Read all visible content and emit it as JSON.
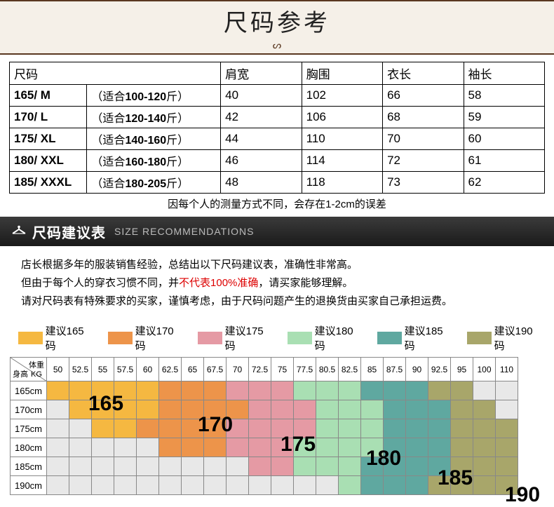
{
  "banner": {
    "title": "尺码参考",
    "sub": "ᔕ"
  },
  "sizeTable": {
    "headers": [
      "尺码",
      "肩宽",
      "胸围",
      "衣长",
      "袖长"
    ],
    "rows": [
      {
        "size": "165/ M",
        "fit_pre": "（适合",
        "fit_b": "100-120",
        "fit_suf": "斤）",
        "shoulder": "40",
        "chest": "102",
        "length": "66",
        "sleeve": "58"
      },
      {
        "size": "170/ L",
        "fit_pre": "（适合",
        "fit_b": "120-140",
        "fit_suf": "斤）",
        "shoulder": "42",
        "chest": "106",
        "length": "68",
        "sleeve": "59"
      },
      {
        "size": "175/ XL",
        "fit_pre": "（适合",
        "fit_b": "140-160",
        "fit_suf": "斤）",
        "shoulder": "44",
        "chest": "110",
        "length": "70",
        "sleeve": "60"
      },
      {
        "size": "180/ XXL",
        "fit_pre": "（适合",
        "fit_b": "160-180",
        "fit_suf": "斤）",
        "shoulder": "46",
        "chest": "114",
        "length": "72",
        "sleeve": "61"
      },
      {
        "size": "185/ XXXL",
        "fit_pre": "（适合",
        "fit_b": "180-205",
        "fit_suf": "斤）",
        "shoulder": "48",
        "chest": "118",
        "length": "73",
        "sleeve": "62"
      }
    ]
  },
  "note": "因每个人的测量方式不同，会存在1-2cm的误差",
  "recHead": {
    "zh": "尺码建议表",
    "en": "SIZE RECOMMENDATIONS"
  },
  "recText": {
    "l1": "店长根据多年的服装销售经验，总结出以下尺码建议表，准确性非常高。",
    "l2a": "但由于每个人的穿衣习惯不同，并",
    "l2b": "不代表100%准确",
    "l2c": "，请买家能够理解。",
    "l3": "请对尺码表有特殊要求的买家，谨慎考虑，由于尺码问题产生的退换货由买家自己承担运费。"
  },
  "legend": [
    {
      "cls": "c165",
      "label": "建议165码"
    },
    {
      "cls": "c170",
      "label": "建议170码"
    },
    {
      "cls": "c175",
      "label": "建议175码"
    },
    {
      "cls": "c180",
      "label": "建议180码"
    },
    {
      "cls": "c185",
      "label": "建议185码"
    },
    {
      "cls": "c190",
      "label": "建议190码"
    }
  ],
  "grid": {
    "cornerWeight": "体重",
    "cornerUnit": "KG",
    "cornerHeight": "身高",
    "weights": [
      "50",
      "52.5",
      "55",
      "57.5",
      "60",
      "62.5",
      "65",
      "67.5",
      "70",
      "72.5",
      "75",
      "77.5",
      "80.5",
      "82.5",
      "85",
      "87.5",
      "90",
      "92.5",
      "95",
      "100",
      "110"
    ],
    "heights": [
      "165cm",
      "170cm",
      "175cm",
      "180cm",
      "185cm",
      "190cm"
    ],
    "cells": [
      [
        "c165",
        "c165",
        "c165",
        "c165",
        "c165",
        "c170",
        "c170",
        "c170",
        "c175",
        "c175",
        "c175",
        "c180",
        "c180",
        "c180",
        "c185",
        "c185",
        "c185",
        "c190",
        "c190",
        "cgrey",
        "cgrey"
      ],
      [
        "cgrey",
        "c165",
        "c165",
        "c165",
        "c165",
        "c170",
        "c170",
        "c170",
        "c170",
        "c175",
        "c175",
        "c175",
        "c180",
        "c180",
        "c180",
        "c185",
        "c185",
        "c185",
        "c190",
        "c190",
        "cgrey"
      ],
      [
        "cgrey",
        "cgrey",
        "c165",
        "c165",
        "c170",
        "c170",
        "c170",
        "c170",
        "c175",
        "c175",
        "c175",
        "c175",
        "c180",
        "c180",
        "c180",
        "c185",
        "c185",
        "c185",
        "c190",
        "c190",
        "c190"
      ],
      [
        "cgrey",
        "cgrey",
        "cgrey",
        "cgrey",
        "cgrey",
        "c170",
        "c170",
        "c170",
        "c175",
        "c175",
        "c175",
        "c180",
        "c180",
        "c180",
        "c180",
        "c185",
        "c185",
        "c185",
        "c190",
        "c190",
        "c190"
      ],
      [
        "cgrey",
        "cgrey",
        "cgrey",
        "cgrey",
        "cgrey",
        "cgrey",
        "cgrey",
        "cgrey",
        "cgrey",
        "c175",
        "c175",
        "c180",
        "c180",
        "c180",
        "c185",
        "c185",
        "c185",
        "c185",
        "c190",
        "c190",
        "c190"
      ],
      [
        "cgrey",
        "cgrey",
        "cgrey",
        "cgrey",
        "cgrey",
        "cgrey",
        "cgrey",
        "cgrey",
        "cgrey",
        "cgrey",
        "cgrey",
        "cgrey",
        "cgrey",
        "c180",
        "c185",
        "c185",
        "c185",
        "c190",
        "c190",
        "c190",
        "c190"
      ]
    ],
    "bigLabels": [
      "165",
      "170",
      "175",
      "180",
      "185",
      "190"
    ]
  },
  "colors": {
    "c165": "#f5b841",
    "c170": "#ed944a",
    "c175": "#e59aa4",
    "c180": "#a9dfb3",
    "c185": "#5fa8a0",
    "c190": "#a8a66a",
    "cgrey": "#e8e8e8"
  }
}
